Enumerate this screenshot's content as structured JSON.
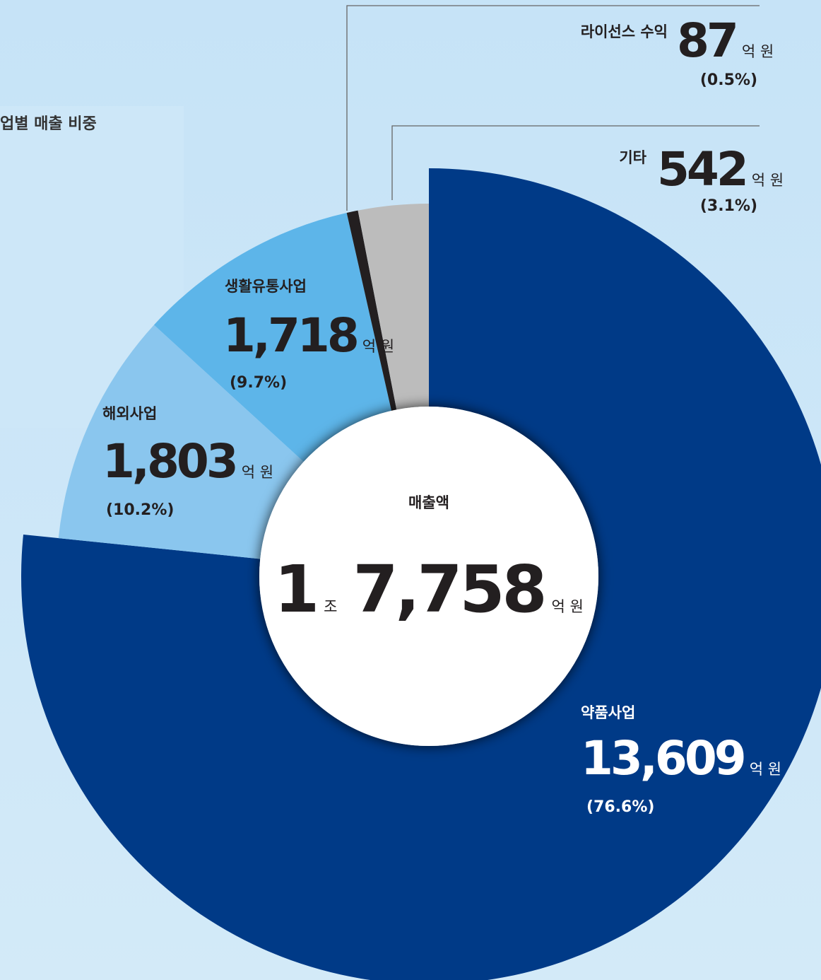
{
  "chart_data": {
    "type": "donut",
    "title": "업별 매출 비중",
    "categories": [
      "약품사업",
      "해외사업",
      "생활유통사업",
      "라이선스 수익",
      "기타"
    ],
    "values": [
      13609,
      1803,
      1718,
      87,
      542
    ],
    "value_labels": [
      "13,609",
      "1,803",
      "1,718",
      "87",
      "542"
    ],
    "percents": [
      76.6,
      10.2,
      9.7,
      0.5,
      3.1
    ],
    "percent_labels": [
      "(76.6%)",
      "(10.2%)",
      "(9.7%)",
      "(0.5%)",
      "(3.1%)"
    ],
    "colors": [
      "#003a87",
      "#8ac6ee",
      "#5db5e9",
      "#231f20",
      "#bcbcbc"
    ],
    "unit": "억 원",
    "center": {
      "label": "매출액",
      "trillion": "1",
      "trillion_unit": "조",
      "rest": "7,758",
      "unit": "억 원"
    }
  }
}
